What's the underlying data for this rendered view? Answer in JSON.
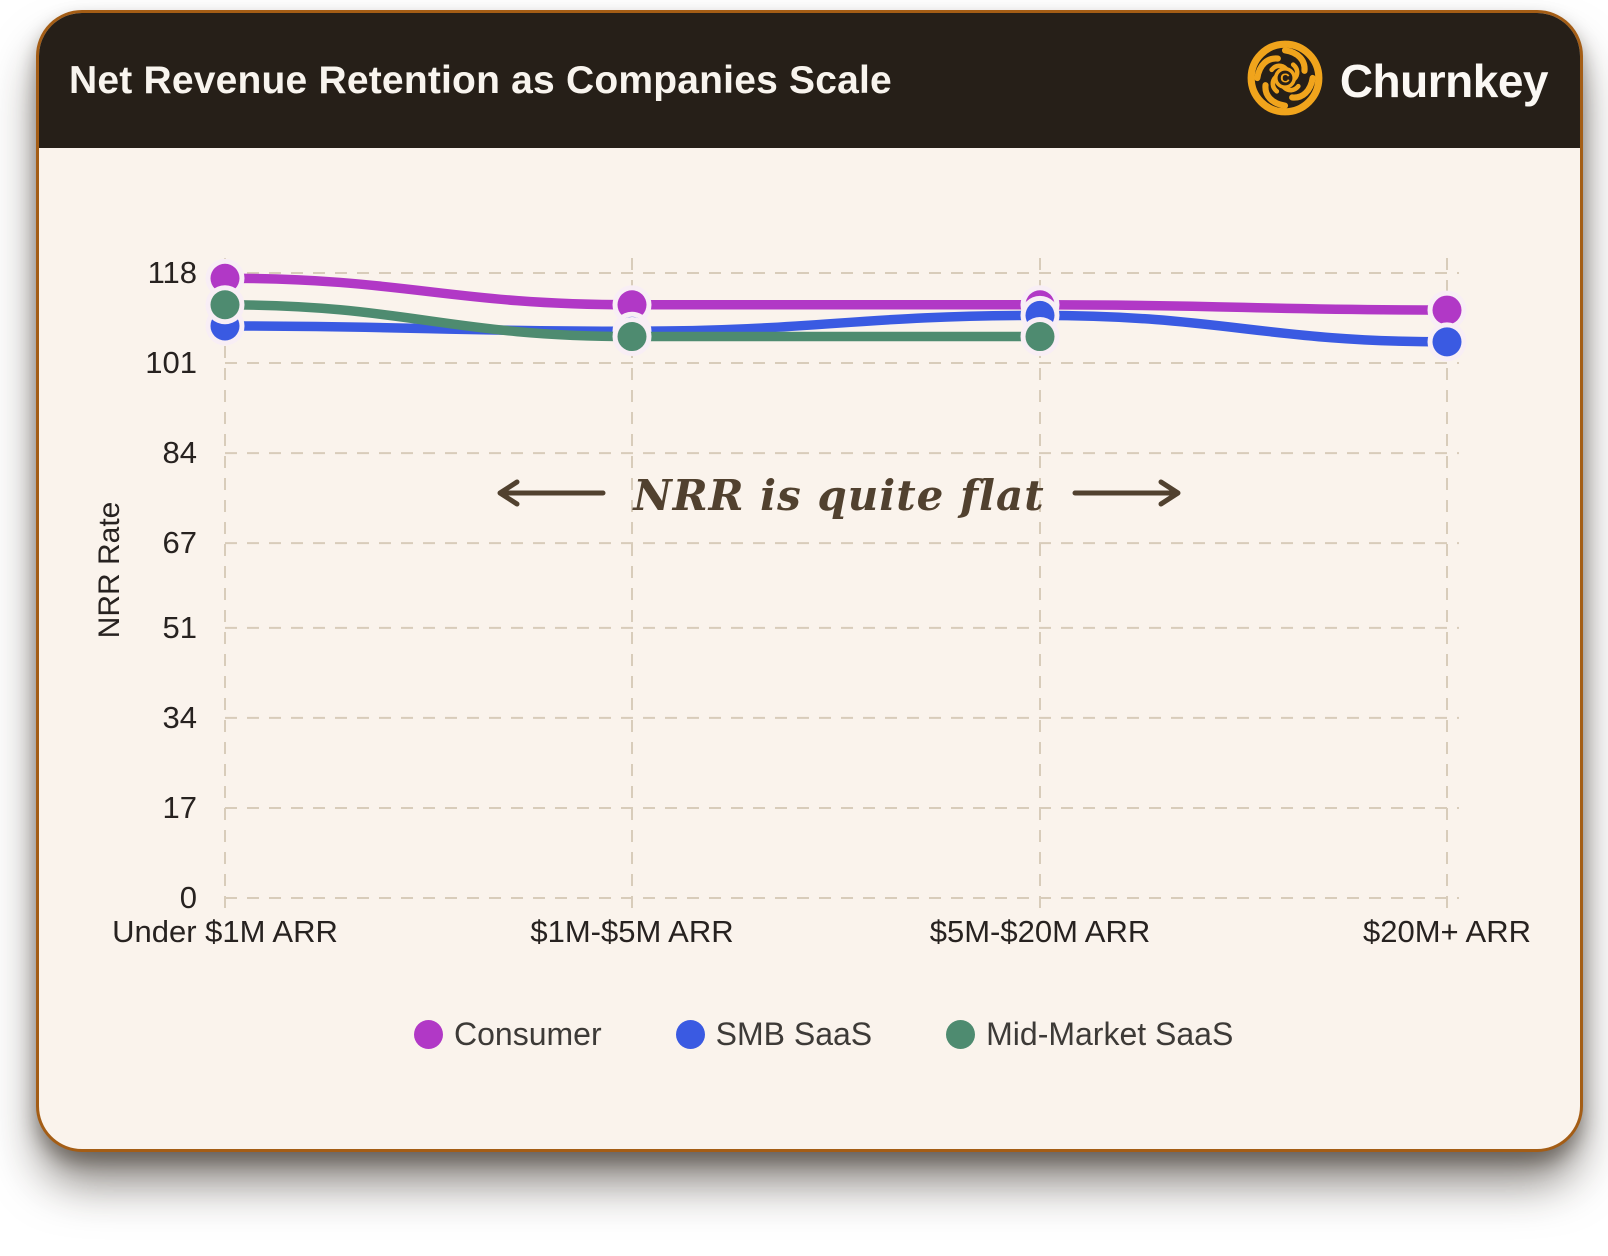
{
  "header": {
    "title": "Net Revenue Retention as Companies Scale",
    "brand": "Churnkey"
  },
  "chart_data": {
    "type": "line",
    "title": "Net Revenue Retention as Companies Scale",
    "categories": [
      "Under $1M ARR",
      "$1M-$5M ARR",
      "$5M-$20M ARR",
      "$20M+ ARR"
    ],
    "series": [
      {
        "name": "Consumer",
        "color": "#b138c6",
        "values": [
          117,
          112,
          112,
          111
        ]
      },
      {
        "name": "SMB SaaS",
        "color": "#3a5ae2",
        "values": [
          108,
          107,
          110,
          105
        ]
      },
      {
        "name": "Mid-Market SaaS",
        "color": "#4e8b70",
        "values": [
          112,
          106,
          106,
          null
        ]
      }
    ],
    "xlabel": "",
    "ylabel": "NRR Rate",
    "yticks": [
      0,
      17,
      34,
      51,
      67,
      84,
      101,
      118
    ],
    "ylim": [
      0,
      118
    ],
    "grid": "dashed",
    "legend_position": "bottom",
    "annotation": "NRR is quite flat"
  },
  "colors": {
    "header_background": "#261f18",
    "card_background": "#faf3ec",
    "card_border": "#a45d15",
    "logo_orange": "#f0a41c",
    "gridline": "#d8ccba",
    "axis_text": "#272220",
    "annotation_text": "#51412f"
  }
}
